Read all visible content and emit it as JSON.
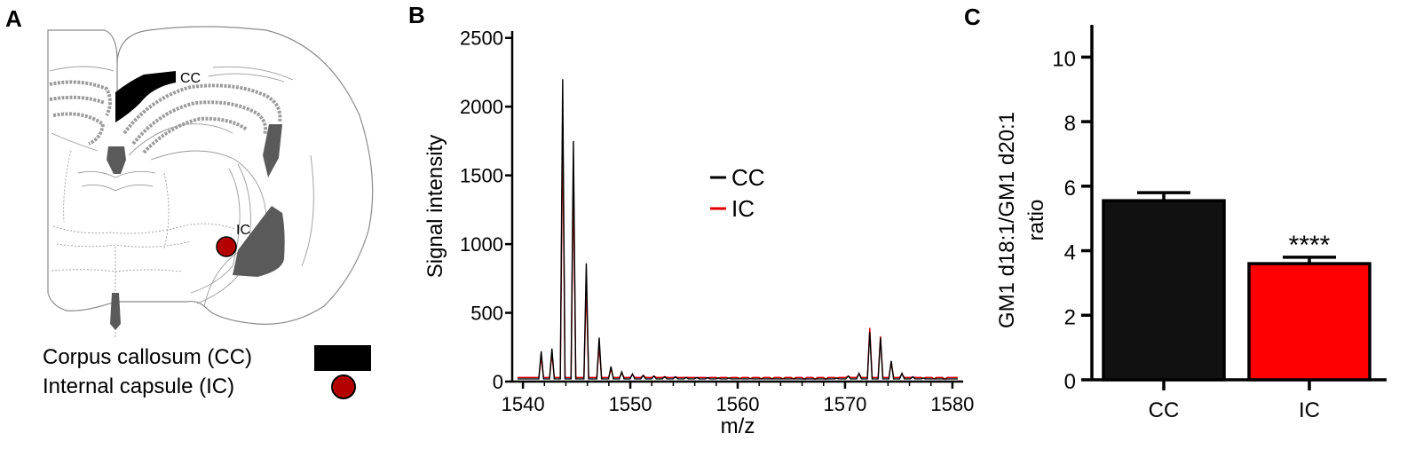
{
  "panels": {
    "a": {
      "letter": "A",
      "cc_label": "CC",
      "ic_label": "IC",
      "legend": [
        {
          "label": "Corpus callosum (CC)",
          "marker": "black-rectangle",
          "color": "#000000"
        },
        {
          "label": "Internal capsule (IC)",
          "marker": "red-circle",
          "color": "#b50000"
        }
      ]
    },
    "b": {
      "letter": "B"
    },
    "c": {
      "letter": "C",
      "significance": "****"
    }
  },
  "chart_data": [
    {
      "type": "line",
      "panel": "B",
      "xlabel": "m/z",
      "ylabel": "Signal intensity",
      "xlim": [
        1539,
        1581
      ],
      "ylim": [
        0,
        2550
      ],
      "xticks": [
        1540,
        1550,
        1560,
        1570,
        1580
      ],
      "yticks": [
        0,
        500,
        1000,
        1500,
        2000,
        2500
      ],
      "legend_position": "upper-middle",
      "series": [
        {
          "name": "CC",
          "color": "#000000",
          "baseline": 20,
          "peaks": [
            [
              1541.7,
              220
            ],
            [
              1542.7,
              240
            ],
            [
              1543.7,
              2200
            ],
            [
              1544.7,
              1750
            ],
            [
              1545.9,
              860
            ],
            [
              1547.1,
              320
            ],
            [
              1548.2,
              110
            ],
            [
              1549.2,
              70
            ],
            [
              1550.2,
              55
            ],
            [
              1551.2,
              45
            ],
            [
              1552.2,
              40
            ],
            [
              1553.2,
              35
            ],
            [
              1554.2,
              35
            ],
            [
              1555.2,
              30
            ],
            [
              1556.2,
              30
            ],
            [
              1557.2,
              28
            ],
            [
              1558.2,
              25
            ],
            [
              1559.2,
              25
            ],
            [
              1560.2,
              22
            ],
            [
              1561.2,
              22
            ],
            [
              1562.2,
              20
            ],
            [
              1563.2,
              20
            ],
            [
              1564.2,
              20
            ],
            [
              1565.2,
              20
            ],
            [
              1566.2,
              18
            ],
            [
              1567.2,
              18
            ],
            [
              1568.2,
              18
            ],
            [
              1569.2,
              25
            ],
            [
              1570.3,
              40
            ],
            [
              1571.3,
              60
            ],
            [
              1572.3,
              360
            ],
            [
              1573.3,
              320
            ],
            [
              1574.3,
              150
            ],
            [
              1575.3,
              60
            ],
            [
              1576.3,
              35
            ],
            [
              1577.3,
              25
            ],
            [
              1578.3,
              20
            ],
            [
              1579.3,
              18
            ]
          ]
        },
        {
          "name": "IC",
          "color": "#e00000",
          "baseline": 30,
          "peaks": [
            [
              1541.7,
              180
            ],
            [
              1542.7,
              200
            ],
            [
              1543.7,
              1850
            ],
            [
              1544.7,
              1500
            ],
            [
              1545.9,
              700
            ],
            [
              1547.1,
              260
            ],
            [
              1548.2,
              90
            ],
            [
              1549.2,
              60
            ],
            [
              1550.2,
              50
            ],
            [
              1551.2,
              45
            ],
            [
              1552.2,
              40
            ],
            [
              1553.2,
              35
            ],
            [
              1554.2,
              32
            ],
            [
              1555.2,
              30
            ],
            [
              1556.2,
              28
            ],
            [
              1557.2,
              26
            ],
            [
              1558.2,
              25
            ],
            [
              1559.2,
              24
            ],
            [
              1560.2,
              22
            ],
            [
              1561.2,
              22
            ],
            [
              1562.2,
              20
            ],
            [
              1563.2,
              20
            ],
            [
              1564.2,
              20
            ],
            [
              1565.2,
              20
            ],
            [
              1566.2,
              18
            ],
            [
              1567.2,
              18
            ],
            [
              1568.2,
              18
            ],
            [
              1569.2,
              25
            ],
            [
              1570.3,
              40
            ],
            [
              1571.3,
              55
            ],
            [
              1572.3,
              390
            ],
            [
              1573.3,
              330
            ],
            [
              1574.3,
              140
            ],
            [
              1575.3,
              55
            ],
            [
              1576.3,
              32
            ],
            [
              1577.3,
              24
            ],
            [
              1578.3,
              20
            ],
            [
              1579.3,
              18
            ]
          ]
        }
      ]
    },
    {
      "type": "bar",
      "panel": "C",
      "categories": [
        "CC",
        "IC"
      ],
      "values": [
        5.55,
        3.6
      ],
      "errors": [
        0.25,
        0.2
      ],
      "colors": [
        "#111111",
        "#ff0000"
      ],
      "ylabel": "GM1 d18:1/GM1 d20:1 ratio",
      "ylabel_lines": [
        "GM1 d18:1/GM1 d20:1",
        "ratio"
      ],
      "ylim": [
        0,
        11
      ],
      "yticks": [
        0,
        2,
        4,
        6,
        8,
        10
      ]
    }
  ]
}
